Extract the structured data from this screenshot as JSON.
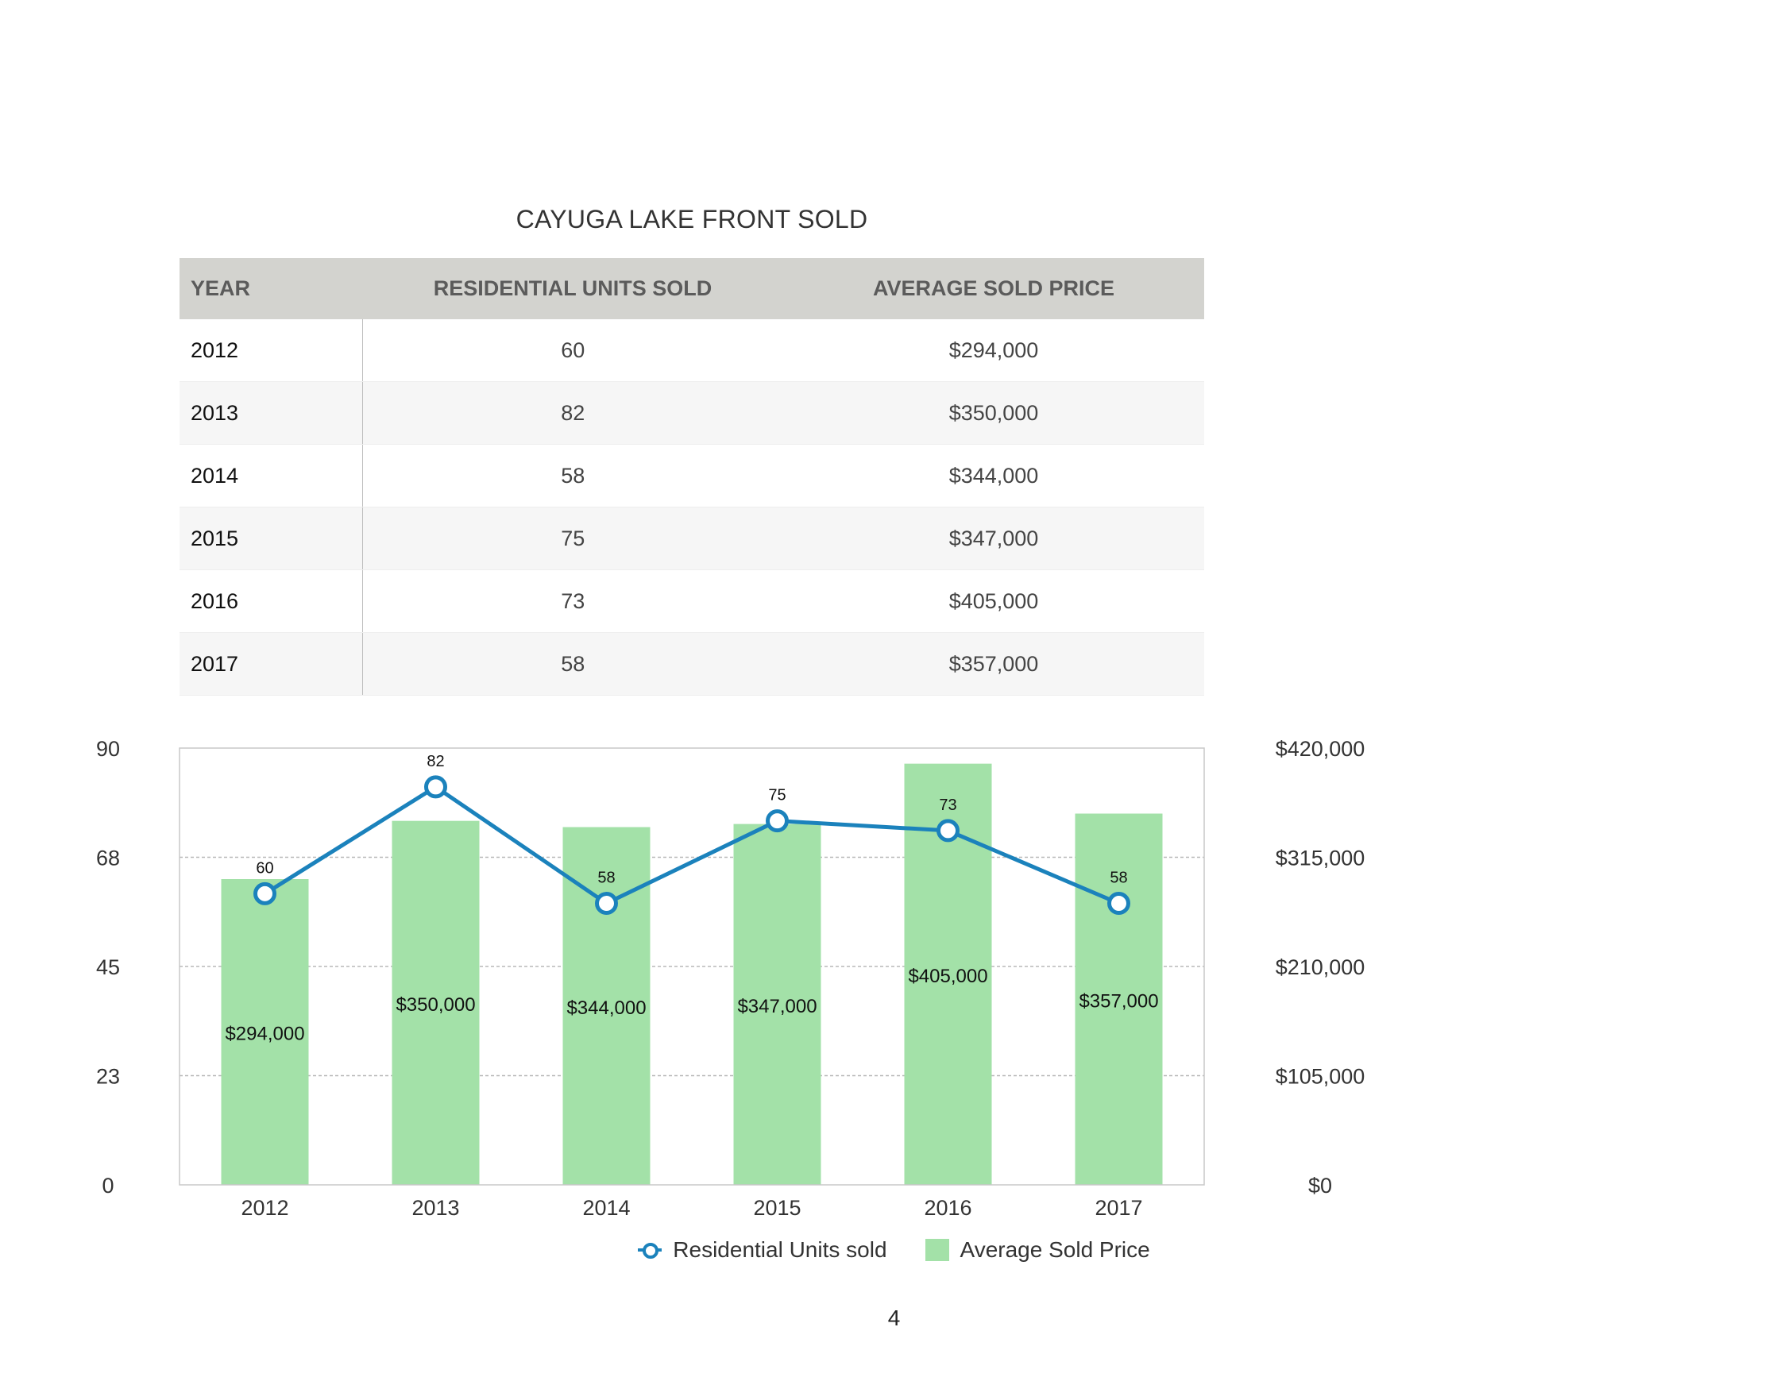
{
  "title": "CAYUGA LAKE FRONT SOLD",
  "table": {
    "headers": [
      "YEAR",
      "RESIDENTIAL UNITS SOLD",
      "AVERAGE SOLD PRICE"
    ],
    "rows": [
      [
        "2012",
        "60",
        "$294,000"
      ],
      [
        "2013",
        "82",
        "$350,000"
      ],
      [
        "2014",
        "58",
        "$344,000"
      ],
      [
        "2015",
        "75",
        "$347,000"
      ],
      [
        "2016",
        "73",
        "$405,000"
      ],
      [
        "2017",
        "58",
        "$357,000"
      ]
    ]
  },
  "colors": {
    "line": "#1b82bc",
    "bar": "#a3e1a8",
    "grid": "#b8b8b8",
    "table_header": "#d3d3cf"
  },
  "chart_data": {
    "type": "bar",
    "combo": "bar-with-line",
    "categories": [
      "2012",
      "2013",
      "2014",
      "2015",
      "2016",
      "2017"
    ],
    "series": [
      {
        "name": "Residential Units sold",
        "type": "line",
        "axis": "left",
        "values": [
          60,
          82,
          58,
          75,
          73,
          58
        ],
        "labels": [
          "60",
          "82",
          "58",
          "75",
          "73",
          "58"
        ]
      },
      {
        "name": "Average Sold Price",
        "type": "bar",
        "axis": "right",
        "values": [
          294000,
          350000,
          344000,
          347000,
          405000,
          357000
        ],
        "labels": [
          "$294,000",
          "$350,000",
          "$344,000",
          "$347,000",
          "$405,000",
          "$357,000"
        ]
      }
    ],
    "y_left": {
      "ylim": [
        0,
        90
      ],
      "ticks": [
        "0",
        "23",
        "45",
        "68",
        "90"
      ]
    },
    "y_right": {
      "ylim": [
        0,
        420000
      ],
      "ticks": [
        "$0",
        "$105,000",
        "$210,000",
        "$315,000",
        "$420,000"
      ]
    },
    "grid": true,
    "legend_placement": "bottom-center"
  },
  "page_number": "4"
}
